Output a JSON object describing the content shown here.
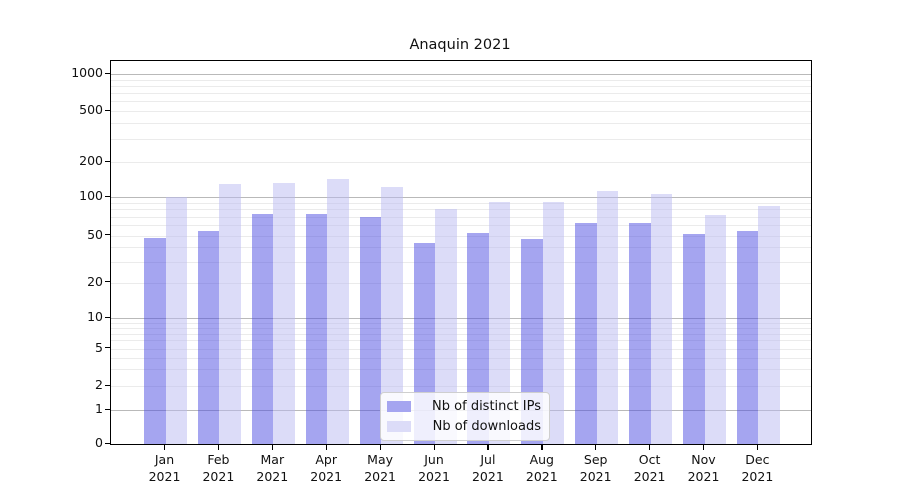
{
  "chart_data": {
    "type": "bar",
    "title": "Anaquin 2021",
    "categories": [
      "Jan 2021",
      "Feb 2021",
      "Mar 2021",
      "Apr 2021",
      "May 2021",
      "Jun 2021",
      "Jul 2021",
      "Aug 2021",
      "Sep 2021",
      "Oct 2021",
      "Nov 2021",
      "Dec 2021"
    ],
    "series": [
      {
        "name": "Nb of distinct IPs",
        "color": "#a5a5f0",
        "values": [
          48,
          54,
          73,
          74,
          70,
          43,
          52,
          47,
          63,
          63,
          51,
          54
        ]
      },
      {
        "name": "Nb of downloads",
        "color": "#dcdcf8",
        "values": [
          100,
          129,
          132,
          142,
          122,
          81,
          91,
          92,
          113,
          106,
          72,
          85
        ]
      }
    ],
    "xlabel": "",
    "ylabel": "",
    "yscale": "symlog",
    "yticks": [
      0,
      1,
      2,
      5,
      10,
      20,
      50,
      100,
      200,
      500,
      1000
    ],
    "ylim": [
      0,
      1400
    ],
    "grid": "both",
    "legend_position": "lower center"
  },
  "colors": {
    "series_dark": "#a5a5f0",
    "series_light": "#dcdcf8",
    "grid_major": "#b9b9b9",
    "grid_minor": "#ebebeb",
    "spine": "#000000"
  }
}
